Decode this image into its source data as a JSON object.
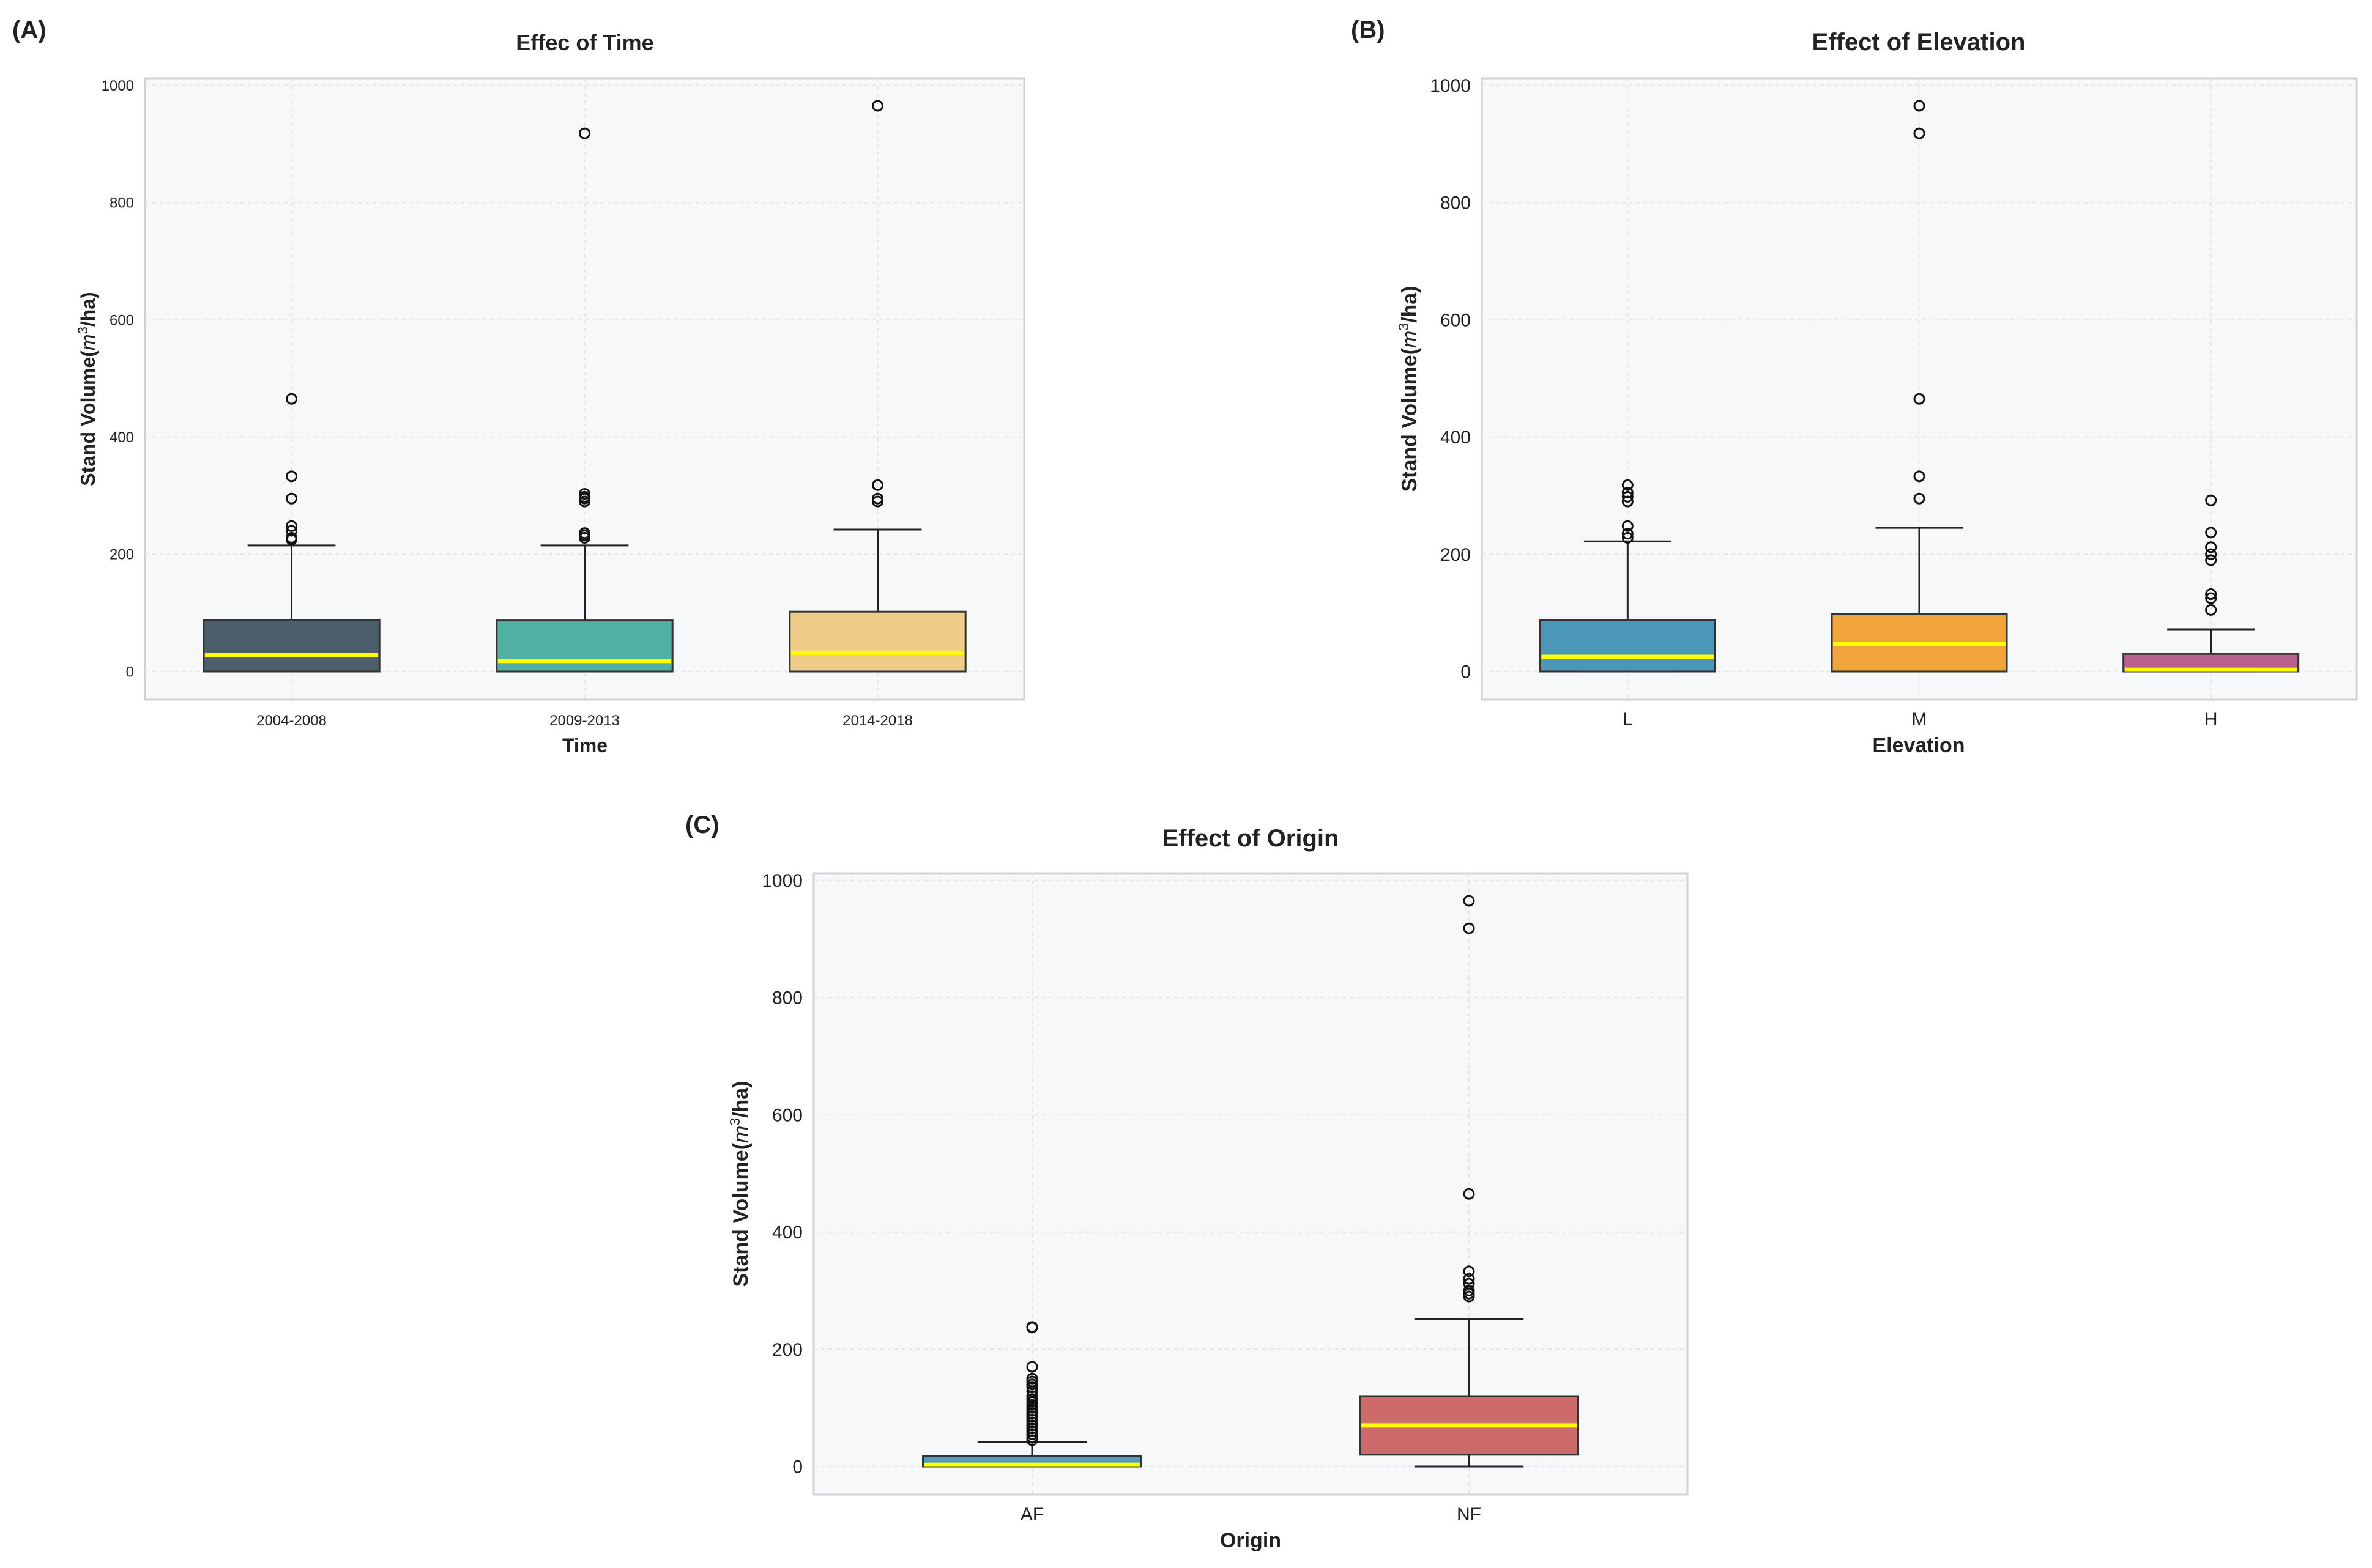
{
  "colors": {
    "plot_background": "#f7f8fa",
    "frame": "#cfd1d4",
    "grid": "#e3e5e8",
    "median": "#ffff00",
    "whisker": "#222222",
    "outlier_stroke": "#111111",
    "text": "#222222"
  },
  "chart_data": [
    {
      "type": "box",
      "panel_label": "(A)",
      "title": "Effec of Time",
      "xlabel": "Time",
      "ylabel": "Stand Volume(",
      "ylabel_math": "m",
      "ylabel_sup": "3",
      "ylabel_unit": "/ha)",
      "ylim": [
        -48,
        1012
      ],
      "yticks": [
        0,
        200,
        400,
        600,
        800,
        1000
      ],
      "grid": true,
      "categories": [
        "2004-2008",
        "2009-2013",
        "2014-2018"
      ],
      "colors": [
        "#4c5e6a",
        "#52b1a5",
        "#edcd88"
      ],
      "boxes": [
        {
          "whislo": 0,
          "q1": 0,
          "med": 28,
          "q3": 88,
          "whishi": 215,
          "fliers": [
            225,
            228,
            240,
            248,
            295,
            333,
            465
          ]
        },
        {
          "whislo": 0,
          "q1": 0,
          "med": 18,
          "q3": 87,
          "whishi": 215,
          "fliers": [
            228,
            232,
            236,
            290,
            295,
            298,
            303,
            918
          ]
        },
        {
          "whislo": 0,
          "q1": 0,
          "med": 32,
          "q3": 102,
          "whishi": 242,
          "fliers": [
            290,
            295,
            318,
            965
          ]
        }
      ]
    },
    {
      "type": "box",
      "panel_label": "(B)",
      "title": "Effect of Elevation",
      "xlabel": "Elevation",
      "ylabel": "Stand Volume(",
      "ylabel_math": "m",
      "ylabel_sup": "3",
      "ylabel_unit": "/ha)",
      "ylim": [
        -48,
        1012
      ],
      "yticks": [
        0,
        200,
        400,
        600,
        800,
        1000
      ],
      "grid": true,
      "categories": [
        "L",
        "M",
        "H"
      ],
      "colors": [
        "#4b97b8",
        "#f1a43a",
        "#b8608b"
      ],
      "boxes": [
        {
          "whislo": 0,
          "q1": 0,
          "med": 25,
          "q3": 88,
          "whishi": 222,
          "fliers": [
            228,
            235,
            248,
            290,
            298,
            305,
            318
          ]
        },
        {
          "whislo": 0,
          "q1": 0,
          "med": 47,
          "q3": 98,
          "whishi": 245,
          "fliers": [
            295,
            333,
            465,
            918,
            965
          ]
        },
        {
          "whislo": 0,
          "q1": 0,
          "med": 3,
          "q3": 30,
          "whishi": 72,
          "fliers": [
            105,
            125,
            132,
            190,
            200,
            212,
            237,
            292
          ]
        }
      ]
    },
    {
      "type": "box",
      "panel_label": "(C)",
      "title": "Effect of Origin",
      "xlabel": "Origin",
      "ylabel": "Stand Volume(",
      "ylabel_math": "m",
      "ylabel_sup": "3",
      "ylabel_unit": "/ha)",
      "ylim": [
        -48,
        1012
      ],
      "yticks": [
        0,
        200,
        400,
        600,
        800,
        1000
      ],
      "grid": true,
      "categories": [
        "AF",
        "NF"
      ],
      "colors": [
        "#4f9ac0",
        "#cd6a6a"
      ],
      "boxes": [
        {
          "whislo": 0,
          "q1": 0,
          "med": 3,
          "q3": 18,
          "whishi": 42,
          "fliers": [
            45,
            50,
            55,
            60,
            65,
            70,
            75,
            80,
            85,
            90,
            95,
            100,
            105,
            110,
            115,
            120,
            128,
            135,
            140,
            145,
            150,
            170,
            237,
            238
          ]
        },
        {
          "whislo": 0,
          "q1": 20,
          "med": 70,
          "q3": 120,
          "whishi": 252,
          "fliers": [
            290,
            295,
            300,
            312,
            320,
            333,
            465,
            918,
            965
          ]
        }
      ]
    }
  ]
}
